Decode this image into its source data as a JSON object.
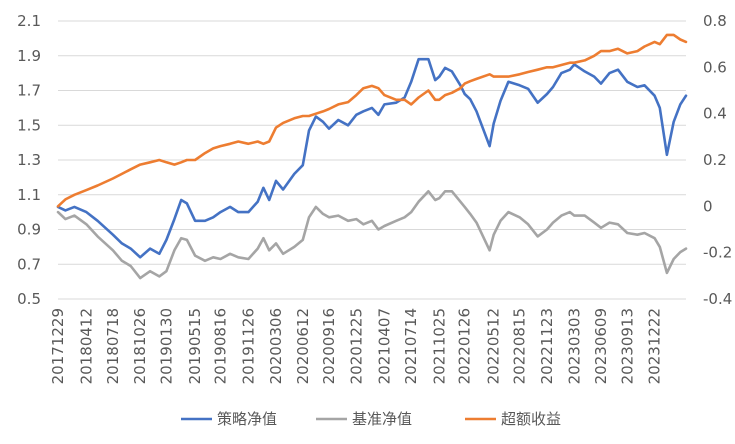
{
  "chart_data": {
    "type": "line",
    "title": "",
    "xlabel": "",
    "ylabel": "",
    "x_tick_labels": [
      "20171229",
      "20180412",
      "20180718",
      "20181026",
      "20190130",
      "20190515",
      "20190816",
      "20191126",
      "20200306",
      "20200612",
      "20200916",
      "20201225",
      "20210407",
      "20210714",
      "20211025",
      "20220126",
      "20220512",
      "20220815",
      "20221123",
      "20230303",
      "20230609",
      "20230913",
      "20231222"
    ],
    "left_axis": {
      "ylim": [
        0.5,
        2.1
      ],
      "ticks": [
        "0.5",
        "0.7",
        "0.9",
        "1.1",
        "1.3",
        "1.5",
        "1.7",
        "1.9",
        "2.1"
      ]
    },
    "right_axis": {
      "ylim": [
        -0.4,
        0.8
      ],
      "ticks": [
        "-0.4",
        "-0.2",
        "0",
        "0.2",
        "0.4",
        "0.6",
        "0.8"
      ]
    },
    "grid": "horizontal",
    "legend_position": "bottom",
    "series": [
      {
        "name": "策略净值",
        "axis": "left",
        "color": "#4472C4",
        "points": [
          [
            "20171229",
            1.03
          ],
          [
            "20180125",
            1.01
          ],
          [
            "20180227",
            1.03
          ],
          [
            "20180412",
            1.0
          ],
          [
            "20180523",
            0.95
          ],
          [
            "20180718",
            0.87
          ],
          [
            "20180820",
            0.82
          ],
          [
            "20180921",
            0.79
          ],
          [
            "20181026",
            0.74
          ],
          [
            "20181201",
            0.79
          ],
          [
            "20190104",
            0.76
          ],
          [
            "20190130",
            0.84
          ],
          [
            "20190228",
            0.96
          ],
          [
            "20190325",
            1.07
          ],
          [
            "20190415",
            1.05
          ],
          [
            "20190515",
            0.95
          ],
          [
            "20190620",
            0.95
          ],
          [
            "20190720",
            0.97
          ],
          [
            "20190816",
            1.0
          ],
          [
            "20190920",
            1.03
          ],
          [
            "20191020",
            1.0
          ],
          [
            "20191126",
            1.0
          ],
          [
            "20191230",
            1.06
          ],
          [
            "20200120",
            1.14
          ],
          [
            "20200210",
            1.07
          ],
          [
            "20200306",
            1.18
          ],
          [
            "20200401",
            1.13
          ],
          [
            "20200512",
            1.22
          ],
          [
            "20200612",
            1.27
          ],
          [
            "20200705",
            1.47
          ],
          [
            "20200730",
            1.55
          ],
          [
            "20200825",
            1.52
          ],
          [
            "20200916",
            1.48
          ],
          [
            "20201020",
            1.53
          ],
          [
            "20201125",
            1.5
          ],
          [
            "20201225",
            1.56
          ],
          [
            "20210120",
            1.58
          ],
          [
            "20210220",
            1.6
          ],
          [
            "20210316",
            1.56
          ],
          [
            "20210407",
            1.62
          ],
          [
            "20210520",
            1.63
          ],
          [
            "20210620",
            1.66
          ],
          [
            "20210714",
            1.75
          ],
          [
            "20210810",
            1.88
          ],
          [
            "20210915",
            1.88
          ],
          [
            "20211010",
            1.76
          ],
          [
            "20211025",
            1.78
          ],
          [
            "20211115",
            1.83
          ],
          [
            "20211210",
            1.81
          ],
          [
            "20220110",
            1.73
          ],
          [
            "20220126",
            1.68
          ],
          [
            "20220215",
            1.65
          ],
          [
            "20220310",
            1.58
          ],
          [
            "20220427",
            1.38
          ],
          [
            "20220512",
            1.51
          ],
          [
            "20220606",
            1.64
          ],
          [
            "20220705",
            1.75
          ],
          [
            "20220815",
            1.73
          ],
          [
            "20220915",
            1.71
          ],
          [
            "20221020",
            1.63
          ],
          [
            "20221123",
            1.68
          ],
          [
            "20221215",
            1.72
          ],
          [
            "20230115",
            1.8
          ],
          [
            "20230215",
            1.82
          ],
          [
            "20230303",
            1.85
          ],
          [
            "20230410",
            1.81
          ],
          [
            "20230515",
            1.78
          ],
          [
            "20230609",
            1.74
          ],
          [
            "20230710",
            1.8
          ],
          [
            "20230810",
            1.82
          ],
          [
            "20230913",
            1.75
          ],
          [
            "20231020",
            1.72
          ],
          [
            "20231115",
            1.73
          ],
          [
            "20231222",
            1.67
          ],
          [
            "20240110",
            1.6
          ],
          [
            "20240205",
            1.33
          ],
          [
            "20240301",
            1.52
          ],
          [
            "20240325",
            1.62
          ],
          [
            "20240415",
            1.67
          ]
        ]
      },
      {
        "name": "基准净值",
        "axis": "left",
        "color": "#A5A5A5",
        "points": [
          [
            "20171229",
            1.0
          ],
          [
            "20180125",
            0.96
          ],
          [
            "20180227",
            0.98
          ],
          [
            "20180412",
            0.93
          ],
          [
            "20180523",
            0.86
          ],
          [
            "20180718",
            0.78
          ],
          [
            "20180820",
            0.72
          ],
          [
            "20180921",
            0.69
          ],
          [
            "20181026",
            0.62
          ],
          [
            "20181201",
            0.66
          ],
          [
            "20190104",
            0.63
          ],
          [
            "20190130",
            0.66
          ],
          [
            "20190228",
            0.78
          ],
          [
            "20190325",
            0.85
          ],
          [
            "20190415",
            0.84
          ],
          [
            "20190515",
            0.75
          ],
          [
            "20190620",
            0.72
          ],
          [
            "20190720",
            0.74
          ],
          [
            "20190816",
            0.73
          ],
          [
            "20190920",
            0.76
          ],
          [
            "20191020",
            0.74
          ],
          [
            "20191126",
            0.73
          ],
          [
            "20191230",
            0.79
          ],
          [
            "20200120",
            0.85
          ],
          [
            "20200210",
            0.78
          ],
          [
            "20200306",
            0.82
          ],
          [
            "20200401",
            0.76
          ],
          [
            "20200512",
            0.8
          ],
          [
            "20200612",
            0.84
          ],
          [
            "20200705",
            0.97
          ],
          [
            "20200730",
            1.03
          ],
          [
            "20200825",
            0.99
          ],
          [
            "20200916",
            0.97
          ],
          [
            "20201020",
            0.98
          ],
          [
            "20201125",
            0.95
          ],
          [
            "20201225",
            0.96
          ],
          [
            "20210120",
            0.93
          ],
          [
            "20210220",
            0.95
          ],
          [
            "20210316",
            0.9
          ],
          [
            "20210407",
            0.92
          ],
          [
            "20210520",
            0.95
          ],
          [
            "20210620",
            0.97
          ],
          [
            "20210714",
            1.0
          ],
          [
            "20210810",
            1.06
          ],
          [
            "20210915",
            1.12
          ],
          [
            "20211010",
            1.07
          ],
          [
            "20211025",
            1.08
          ],
          [
            "20211115",
            1.12
          ],
          [
            "20211210",
            1.12
          ],
          [
            "20220110",
            1.06
          ],
          [
            "20220126",
            1.03
          ],
          [
            "20220215",
            0.99
          ],
          [
            "20220310",
            0.94
          ],
          [
            "20220427",
            0.78
          ],
          [
            "20220512",
            0.87
          ],
          [
            "20220606",
            0.95
          ],
          [
            "20220705",
            1.0
          ],
          [
            "20220815",
            0.97
          ],
          [
            "20220915",
            0.93
          ],
          [
            "20221020",
            0.86
          ],
          [
            "20221123",
            0.9
          ],
          [
            "20221215",
            0.94
          ],
          [
            "20230115",
            0.98
          ],
          [
            "20230215",
            1.0
          ],
          [
            "20230303",
            0.98
          ],
          [
            "20230410",
            0.98
          ],
          [
            "20230515",
            0.94
          ],
          [
            "20230609",
            0.91
          ],
          [
            "20230710",
            0.94
          ],
          [
            "20230810",
            0.93
          ],
          [
            "20230913",
            0.88
          ],
          [
            "20231020",
            0.87
          ],
          [
            "20231115",
            0.88
          ],
          [
            "20231222",
            0.85
          ],
          [
            "20240110",
            0.8
          ],
          [
            "20240205",
            0.65
          ],
          [
            "20240301",
            0.73
          ],
          [
            "20240325",
            0.77
          ],
          [
            "20240415",
            0.79
          ]
        ]
      },
      {
        "name": "超额收益",
        "axis": "right",
        "color": "#ED7D31",
        "points": [
          [
            "20171229",
            0.0
          ],
          [
            "20180125",
            0.03
          ],
          [
            "20180227",
            0.05
          ],
          [
            "20180412",
            0.07
          ],
          [
            "20180523",
            0.09
          ],
          [
            "20180718",
            0.12
          ],
          [
            "20180820",
            0.14
          ],
          [
            "20180921",
            0.16
          ],
          [
            "20181026",
            0.18
          ],
          [
            "20181201",
            0.19
          ],
          [
            "20190104",
            0.2
          ],
          [
            "20190130",
            0.19
          ],
          [
            "20190228",
            0.18
          ],
          [
            "20190325",
            0.19
          ],
          [
            "20190415",
            0.2
          ],
          [
            "20190515",
            0.2
          ],
          [
            "20190620",
            0.23
          ],
          [
            "20190720",
            0.25
          ],
          [
            "20190816",
            0.26
          ],
          [
            "20190920",
            0.27
          ],
          [
            "20191020",
            0.28
          ],
          [
            "20191126",
            0.27
          ],
          [
            "20191230",
            0.28
          ],
          [
            "20200120",
            0.27
          ],
          [
            "20200210",
            0.28
          ],
          [
            "20200306",
            0.34
          ],
          [
            "20200401",
            0.36
          ],
          [
            "20200512",
            0.38
          ],
          [
            "20200612",
            0.39
          ],
          [
            "20200705",
            0.39
          ],
          [
            "20200730",
            0.4
          ],
          [
            "20200825",
            0.41
          ],
          [
            "20200916",
            0.42
          ],
          [
            "20201020",
            0.44
          ],
          [
            "20201125",
            0.45
          ],
          [
            "20201225",
            0.48
          ],
          [
            "20210120",
            0.51
          ],
          [
            "20210220",
            0.52
          ],
          [
            "20210316",
            0.51
          ],
          [
            "20210407",
            0.48
          ],
          [
            "20210520",
            0.46
          ],
          [
            "20210620",
            0.46
          ],
          [
            "20210714",
            0.44
          ],
          [
            "20210810",
            0.47
          ],
          [
            "20210915",
            0.5
          ],
          [
            "20211010",
            0.46
          ],
          [
            "20211025",
            0.46
          ],
          [
            "20211115",
            0.48
          ],
          [
            "20211210",
            0.49
          ],
          [
            "20220110",
            0.51
          ],
          [
            "20220126",
            0.53
          ],
          [
            "20220215",
            0.54
          ],
          [
            "20220310",
            0.55
          ],
          [
            "20220427",
            0.57
          ],
          [
            "20220512",
            0.56
          ],
          [
            "20220606",
            0.56
          ],
          [
            "20220705",
            0.56
          ],
          [
            "20220815",
            0.57
          ],
          [
            "20220915",
            0.58
          ],
          [
            "20221020",
            0.59
          ],
          [
            "20221123",
            0.6
          ],
          [
            "20221215",
            0.6
          ],
          [
            "20230115",
            0.61
          ],
          [
            "20230215",
            0.62
          ],
          [
            "20230303",
            0.62
          ],
          [
            "20230410",
            0.63
          ],
          [
            "20230515",
            0.65
          ],
          [
            "20230609",
            0.67
          ],
          [
            "20230710",
            0.67
          ],
          [
            "20230810",
            0.68
          ],
          [
            "20230913",
            0.66
          ],
          [
            "20231020",
            0.67
          ],
          [
            "20231115",
            0.69
          ],
          [
            "20231222",
            0.71
          ],
          [
            "20240110",
            0.7
          ],
          [
            "20240205",
            0.74
          ],
          [
            "20240301",
            0.74
          ],
          [
            "20240325",
            0.72
          ],
          [
            "20240415",
            0.71
          ]
        ]
      }
    ]
  }
}
